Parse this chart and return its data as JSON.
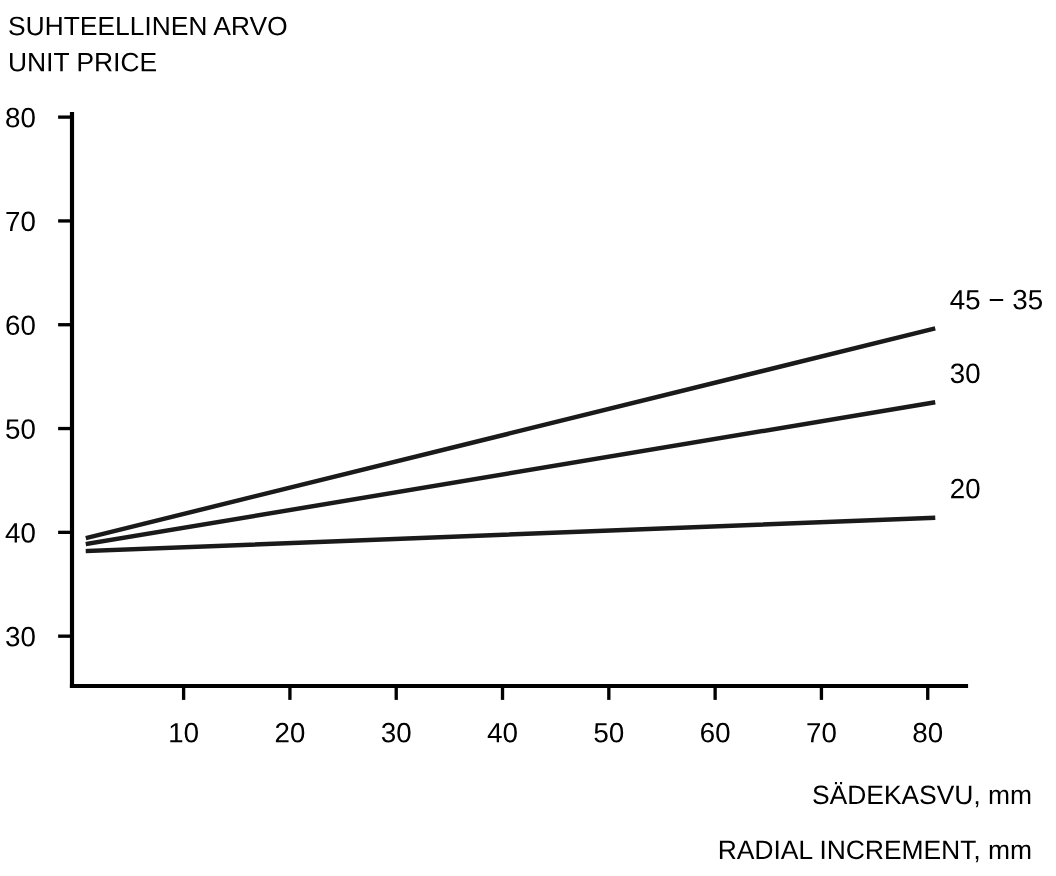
{
  "chart_data": {
    "type": "line",
    "ylabel": "SUHTEELLINEN ARVO\nUNIT PRICE",
    "xlabel": "SÄDEKASVU, mm\n\nRADIAL INCREMENT, mm",
    "x": [
      1,
      80.5
    ],
    "series": [
      {
        "name": "45 − 35",
        "color": "#1a1a1a",
        "values": [
          39.5,
          59.6
        ]
      },
      {
        "name": "30",
        "color": "#1a1a1a",
        "values": [
          38.9,
          52.5
        ]
      },
      {
        "name": "20",
        "color": "#1a1a1a",
        "values": [
          38.2,
          41.4
        ]
      }
    ],
    "xlim": [
      -0.5,
      83.6
    ],
    "ylim": [
      25.2,
      80.3
    ],
    "xticks": [
      10,
      20,
      30,
      40,
      50,
      60,
      70,
      80
    ],
    "yticks": [
      30,
      40,
      50,
      60,
      70,
      80
    ],
    "grid": false,
    "legend": false,
    "marker": "none",
    "line_style": "solid"
  }
}
